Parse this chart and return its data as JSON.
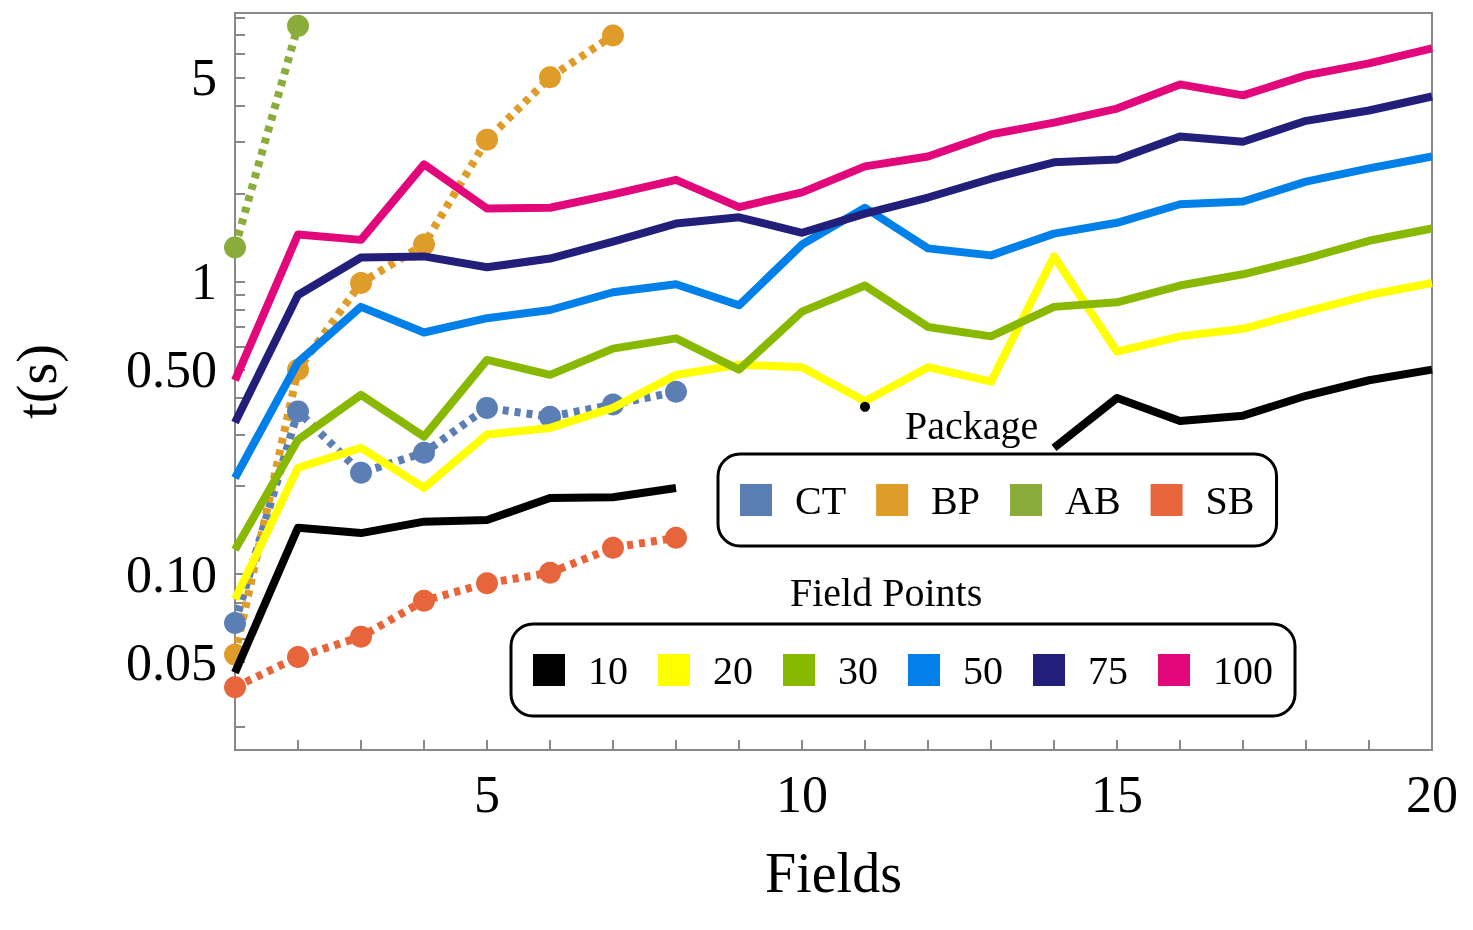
{
  "chart_data": {
    "type": "line",
    "xlabel": "Fields",
    "ylabel": "t(s)",
    "log": "y",
    "grid": false,
    "legend": "bottom right",
    "annotations": [
      "Package",
      "Field Points"
    ],
    "xlim": [
      1,
      20
    ],
    "xticks": [
      {
        "value": 1,
        "label": null
      },
      {
        "value": 2,
        "label": null
      },
      {
        "value": 3,
        "label": null
      },
      {
        "value": 4,
        "label": null
      },
      5,
      {
        "value": 6,
        "label": null
      },
      {
        "value": 7,
        "label": null
      },
      {
        "value": 8,
        "label": null
      },
      {
        "value": 9,
        "label": null
      },
      10,
      {
        "value": 11,
        "label": null
      },
      {
        "value": 12,
        "label": null
      },
      {
        "value": 13,
        "label": null
      },
      {
        "value": 14,
        "label": null
      },
      15,
      {
        "value": 16,
        "label": null
      },
      {
        "value": 17,
        "label": null
      },
      {
        "value": 18,
        "label": null
      },
      {
        "value": 19,
        "label": null
      },
      20
    ],
    "ylim": [
      0.025,
      8.3
    ],
    "yticks": [
      {
        "value": 0.03,
        "label": null
      },
      {
        "value": 0.04,
        "label": null
      },
      0.05,
      {
        "value": 0.06,
        "label": null
      },
      {
        "value": 0.07,
        "label": null
      },
      {
        "value": 0.08,
        "label": null
      },
      {
        "value": 0.09,
        "label": null
      },
      {
        "value": 0.1,
        "label": "0.10"
      },
      {
        "value": 0.2,
        "label": null
      },
      {
        "value": 0.3,
        "label": null
      },
      {
        "value": 0.4,
        "label": null
      },
      {
        "value": 0.5,
        "label": "0.50"
      },
      {
        "value": 0.6,
        "label": null
      },
      {
        "value": 0.7,
        "label": null
      },
      {
        "value": 0.8,
        "label": null
      },
      {
        "value": 0.9,
        "label": null
      },
      1,
      {
        "value": 2,
        "label": null
      },
      {
        "value": 3,
        "label": null
      },
      {
        "value": 4,
        "label": null
      },
      5,
      {
        "value": 6,
        "label": null
      },
      {
        "value": 7,
        "label": null
      },
      {
        "value": 8,
        "label": null
      }
    ],
    "series": [
      {
        "name": "CT",
        "color": "#5b7fb5",
        "line_style": "dashed",
        "marker": "circle",
        "x": [
          1,
          2,
          3,
          4,
          5,
          6,
          7,
          8
        ],
        "values": [
          0.068,
          0.36,
          0.222,
          0.26,
          0.37,
          0.345,
          0.38,
          0.42
        ]
      },
      {
        "name": "BP",
        "color": "#e09c28",
        "line_style": "dashed",
        "marker": "circle",
        "x": [
          1,
          2,
          3,
          4,
          5,
          6,
          7
        ],
        "values": [
          0.053,
          0.5,
          0.99,
          1.34,
          3.06,
          5.0,
          6.95
        ]
      },
      {
        "name": "AB",
        "color": "#8aac3a",
        "line_style": "dashed",
        "marker": "circle",
        "x": [
          1,
          2
        ],
        "values": [
          1.31,
          7.5
        ]
      },
      {
        "name": "SB",
        "color": "#e8643a",
        "line_style": "dashed",
        "marker": "circle",
        "x": [
          1,
          2,
          3,
          4,
          5,
          6,
          7,
          8
        ],
        "values": [
          0.041,
          0.052,
          0.061,
          0.081,
          0.093,
          0.101,
          0.123,
          0.133
        ]
      },
      {
        "name": "10",
        "color": "#000000",
        "line_style": "solid",
        "marker": "none",
        "x": [
          1,
          2,
          3,
          4,
          5,
          6,
          7,
          8,
          9,
          10,
          11,
          12,
          13,
          14,
          15,
          16,
          17,
          18,
          19,
          20
        ],
        "values": [
          0.046,
          0.144,
          0.138,
          0.151,
          0.153,
          0.182,
          0.183,
          0.197,
          null,
          null,
          0.373,
          null,
          null,
          0.27,
          0.4,
          0.334,
          0.348,
          0.407,
          0.46,
          0.5
        ]
      },
      {
        "name": "20",
        "color": "#ffff00",
        "line_style": "solid",
        "marker": "none",
        "x": [
          1,
          2,
          3,
          4,
          5,
          6,
          7,
          8,
          9,
          10,
          11,
          12,
          13,
          14,
          15,
          16,
          17,
          18,
          19,
          20
        ],
        "values": [
          0.082,
          0.231,
          0.27,
          0.197,
          0.3,
          0.316,
          0.37,
          0.48,
          0.52,
          0.51,
          0.39,
          0.51,
          0.455,
          1.22,
          0.576,
          0.65,
          0.69,
          0.79,
          0.9,
          0.99
        ]
      },
      {
        "name": "30",
        "color": "#88b800",
        "line_style": "solid",
        "marker": "none",
        "x": [
          1,
          2,
          3,
          4,
          5,
          6,
          7,
          8,
          9,
          10,
          11,
          12,
          13,
          14,
          15,
          16,
          17,
          18,
          19,
          20
        ],
        "values": [
          0.121,
          0.288,
          0.41,
          0.295,
          0.54,
          0.48,
          0.59,
          0.64,
          0.5,
          0.79,
          0.97,
          0.7,
          0.65,
          0.82,
          0.85,
          0.97,
          1.06,
          1.2,
          1.38,
          1.52
        ]
      },
      {
        "name": "50",
        "color": "#0080e8",
        "line_style": "solid",
        "marker": "none",
        "x": [
          1,
          2,
          3,
          4,
          5,
          6,
          7,
          8,
          9,
          10,
          11,
          12,
          13,
          14,
          15,
          16,
          17,
          18,
          19,
          20
        ],
        "values": [
          0.213,
          0.53,
          0.82,
          0.67,
          0.75,
          0.8,
          0.92,
          0.98,
          0.83,
          1.34,
          1.79,
          1.3,
          1.23,
          1.46,
          1.59,
          1.84,
          1.88,
          2.2,
          2.44,
          2.68
        ]
      },
      {
        "name": "75",
        "color": "#221f7a",
        "line_style": "solid",
        "marker": "none",
        "x": [
          1,
          2,
          3,
          4,
          5,
          6,
          7,
          8,
          9,
          10,
          11,
          12,
          13,
          14,
          15,
          16,
          17,
          18,
          19,
          20
        ],
        "values": [
          0.33,
          0.9,
          1.21,
          1.22,
          1.12,
          1.2,
          1.37,
          1.58,
          1.66,
          1.47,
          1.71,
          1.94,
          2.25,
          2.56,
          2.62,
          3.14,
          3.01,
          3.55,
          3.85,
          4.3
        ]
      },
      {
        "name": "100",
        "color": "#e2077b",
        "line_style": "solid",
        "marker": "none",
        "x": [
          1,
          2,
          3,
          4,
          5,
          6,
          7,
          8,
          9,
          10,
          11,
          12,
          13,
          14,
          15,
          16,
          17,
          18,
          19,
          20
        ],
        "values": [
          0.46,
          1.45,
          1.39,
          2.52,
          1.78,
          1.79,
          1.99,
          2.23,
          1.8,
          2.02,
          2.48,
          2.68,
          3.19,
          3.5,
          3.91,
          4.73,
          4.34,
          5.08,
          5.58,
          6.28
        ]
      }
    ]
  }
}
